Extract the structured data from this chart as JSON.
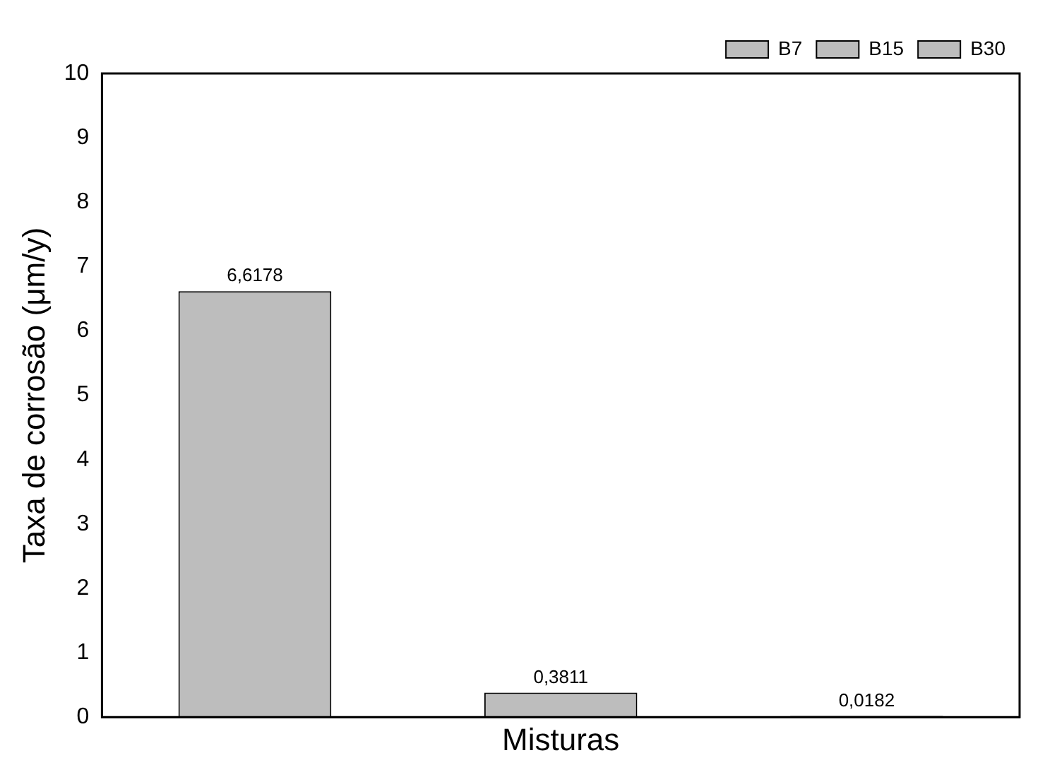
{
  "chart_data": {
    "type": "bar",
    "xlabel": "Misturas",
    "ylabel": "Taxa de corrosão (μm/y)",
    "categories": [
      null,
      null,
      null
    ],
    "series": [
      {
        "name": "B7",
        "color": "#bdbdbd",
        "values": [
          6.6178,
          null,
          null
        ],
        "value_labels": [
          "6,6178",
          null,
          null
        ]
      },
      {
        "name": "B15",
        "color": "#bdbdbd",
        "values": [
          null,
          0.3811,
          null
        ],
        "value_labels": [
          null,
          "0,3811",
          null
        ]
      },
      {
        "name": "B30",
        "color": "#bdbdbd",
        "values": [
          null,
          null,
          0.0182
        ],
        "value_labels": [
          null,
          null,
          "0,0182"
        ]
      }
    ],
    "ylim": [
      0,
      10
    ],
    "yticks": [
      0,
      1,
      2,
      3,
      4,
      5,
      6,
      7,
      8,
      9,
      10
    ],
    "grid": false,
    "legend": "top right"
  }
}
